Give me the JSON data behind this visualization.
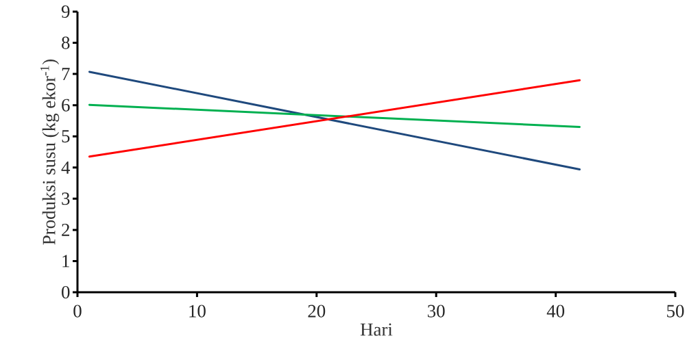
{
  "chart_data": {
    "type": "line",
    "xlabel": "Hari",
    "ylabel": "Produksi susu (kg ekor$^{-1}$)",
    "xlim": [
      0,
      50
    ],
    "xticks": [
      0,
      10,
      20,
      30,
      40,
      50
    ],
    "ylim": [
      0,
      9
    ],
    "yticks": [
      0,
      1,
      2,
      3,
      4,
      5,
      6,
      7,
      8,
      9
    ],
    "x": [
      1,
      42
    ],
    "series": [
      {
        "color": "#1f497d",
        "values": [
          7.07,
          3.94
        ]
      },
      {
        "color": "#00b050",
        "values": [
          6.01,
          5.3
        ]
      },
      {
        "color": "#ff0000",
        "values": [
          4.35,
          6.8
        ]
      }
    ],
    "grid": false,
    "legend": false,
    "marker": "none",
    "line_style": "solid"
  }
}
